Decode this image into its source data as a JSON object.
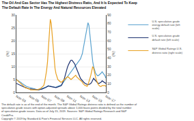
{
  "chart_data": {
    "type": "line",
    "title": "The Oil And Gas Sector Has The Highest Distress Ratio, And It Is Expected To Keep\nThe Default Rate In The Energy And Natural Resources Elevated",
    "annotations": [
      "The default rate is as of the end of the month. The S&P Global Ratings distress ratio is defined as the number of\nspeculative-grade issues with option-adjusted spreads above 1,000 basis points divided by the total number\nof speculative-grade issues. Data as of July 15, 2019. Sources: S&P Global Ratings Research and S&P\nCreditPro.\nCopyright © 2019 by Standard & Poor's Financial Services LLC. All rights reserved."
    ],
    "y_label": "(%)",
    "y2_label": "(%)",
    "categories": [
      "Nov-03",
      null,
      null,
      null,
      null,
      null,
      null,
      null,
      null,
      null,
      null,
      null,
      null,
      null,
      "Nov-05",
      null,
      null,
      null,
      null,
      null,
      null,
      null,
      null,
      null,
      null,
      null,
      null,
      "Nov-07",
      null,
      null,
      null,
      null,
      null,
      null,
      null,
      null,
      null,
      null,
      null,
      null,
      null,
      "Nov-09",
      null,
      null,
      null,
      null,
      null,
      null,
      null,
      null,
      null,
      null,
      null,
      null,
      "Nov-11",
      null,
      null,
      null,
      null,
      null,
      null,
      null,
      null,
      null,
      null,
      null,
      null,
      null,
      "Nov-13",
      null,
      null,
      null,
      null,
      null,
      null,
      null,
      null,
      null,
      null,
      null,
      null,
      "Nov-15",
      null,
      null,
      null,
      null,
      null,
      null,
      null,
      null,
      null,
      null,
      null,
      null,
      null,
      "Nov-17"
    ],
    "series": [
      {
        "name": "U.S. speculative-grade\nenergy default rate (left\nscale)",
        "color": "#5ba3cf",
        "values": [
          5.0,
          4.8,
          4.5,
          4.2,
          4.0,
          3.8,
          3.5,
          3.2,
          3.0,
          2.8,
          2.5,
          2.3,
          2.2,
          2.0,
          1.8,
          1.7,
          1.6,
          1.5,
          1.4,
          1.3,
          1.2,
          1.1,
          1.0,
          1.0,
          1.1,
          1.2,
          1.3,
          1.4,
          1.5,
          1.6,
          1.8,
          2.0,
          2.2,
          2.4,
          2.6,
          2.5,
          2.4,
          2.3,
          2.2,
          2.1,
          2.0,
          2.0,
          2.1,
          2.2,
          2.3,
          2.4,
          2.6,
          2.8,
          3.0,
          3.5,
          4.0,
          4.5,
          5.0,
          5.5,
          6.0,
          6.5,
          7.0,
          7.5,
          8.0,
          8.5,
          9.0,
          9.5,
          10.0,
          10.5,
          11.0,
          11.5,
          12.0,
          12.5,
          13.0,
          14.0,
          15.0,
          17.0,
          19.0,
          21.0,
          23.0,
          25.0,
          27.0,
          26.0,
          22.0,
          18.0,
          15.0,
          12.0,
          10.0,
          8.5,
          7.5,
          7.0,
          6.5,
          6.5,
          6.8,
          7.0,
          7.5,
          8.0,
          7.5,
          7.0,
          6.5,
          5.5
        ]
      },
      {
        "name": "U.S. speculative-grade\ndefault rate (left scale)",
        "color": "#1a2f6e",
        "values": [
          3.5,
          3.3,
          3.2,
          3.0,
          2.8,
          2.7,
          2.5,
          2.3,
          2.1,
          2.0,
          1.8,
          1.7,
          1.6,
          1.5,
          1.4,
          1.3,
          1.3,
          1.2,
          1.2,
          1.2,
          1.1,
          1.1,
          1.0,
          1.0,
          1.1,
          1.1,
          1.2,
          1.3,
          1.4,
          1.5,
          1.7,
          1.9,
          2.1,
          2.3,
          2.5,
          2.4,
          2.3,
          2.2,
          2.1,
          2.0,
          1.9,
          1.8,
          1.9,
          2.0,
          2.1,
          2.2,
          2.3,
          2.5,
          2.8,
          3.5,
          4.5,
          5.5,
          7.0,
          8.5,
          9.5,
          10.5,
          11.5,
          12.0,
          12.5,
          12.5,
          12.0,
          11.5,
          11.0,
          10.0,
          9.0,
          8.0,
          7.0,
          6.0,
          5.5,
          5.0,
          4.5,
          4.0,
          3.8,
          3.5,
          3.3,
          3.2,
          3.0,
          3.1,
          3.2,
          3.5,
          4.0,
          5.0,
          5.5,
          5.0,
          4.5,
          4.0,
          3.8,
          3.5,
          3.5,
          3.8,
          4.0,
          4.5,
          4.3,
          4.0,
          3.8,
          3.5
        ]
      },
      {
        "name": "S&P Global Ratings U.S.\ndistress ratio (right scale)",
        "color": "#e8a020",
        "axis": "y2",
        "values": [
          15,
          14,
          13,
          12,
          11,
          10,
          9,
          8,
          7,
          6,
          5,
          5,
          5,
          4,
          4,
          3,
          3,
          3,
          3,
          3,
          3,
          3,
          3,
          3,
          4,
          4,
          5,
          6,
          7,
          8,
          12,
          18,
          25,
          35,
          55,
          75,
          85,
          80,
          65,
          50,
          35,
          28,
          22,
          18,
          15,
          14,
          13,
          12,
          12,
          13,
          14,
          15,
          16,
          17,
          18,
          18,
          17,
          16,
          15,
          16,
          17,
          18,
          19,
          20,
          18,
          17,
          16,
          15,
          14,
          13,
          12,
          10,
          9,
          8,
          8,
          7,
          9,
          12,
          16,
          20,
          25,
          30,
          28,
          22,
          18,
          14,
          11,
          9,
          8,
          7,
          7,
          8,
          8,
          8,
          8,
          7
        ]
      }
    ],
    "ylim": [
      0,
      30
    ],
    "yticks": [
      0,
      5,
      10,
      15,
      20,
      25,
      30
    ],
    "y2lim": [
      0,
      90
    ],
    "y2ticks": [
      0,
      10,
      20,
      30,
      40,
      50,
      60,
      70,
      80,
      90
    ],
    "grid": true,
    "legend": "right"
  }
}
